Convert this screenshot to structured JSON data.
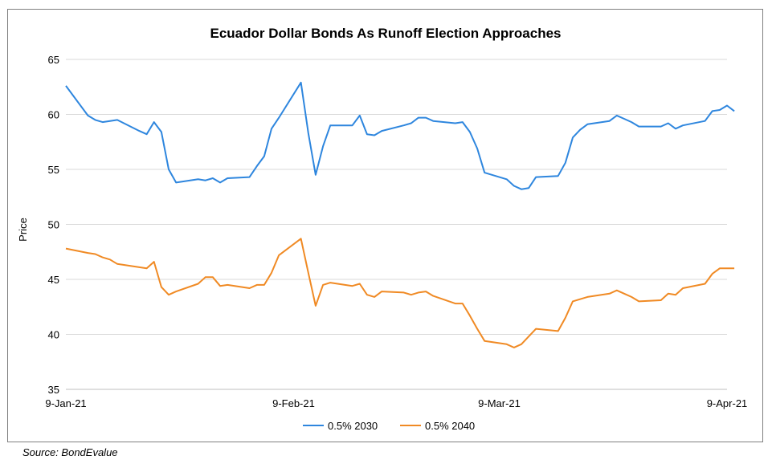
{
  "chart_data": {
    "type": "line",
    "title": "Ecuador Dollar Bonds As Runoff Election Approaches",
    "xlabel": "",
    "ylabel": "Price",
    "ylim": [
      35,
      65
    ],
    "yticks": [
      35,
      40,
      45,
      50,
      55,
      60,
      65
    ],
    "xlim": [
      "2021-01-09",
      "2021-04-09"
    ],
    "xticks": [
      "9-Jan-21",
      "9-Feb-21",
      "9-Mar-21",
      "9-Apr-21"
    ],
    "grid": true,
    "legend": "bottom-center",
    "series": [
      {
        "name": "0.5% 2030",
        "color": "#2E86DE",
        "points": [
          [
            "2021-01-09",
            62.6
          ],
          [
            "2021-01-12",
            59.9
          ],
          [
            "2021-01-13",
            59.5
          ],
          [
            "2021-01-14",
            59.3
          ],
          [
            "2021-01-15",
            59.4
          ],
          [
            "2021-01-16",
            59.5
          ],
          [
            "2021-01-19",
            58.5
          ],
          [
            "2021-01-20",
            58.2
          ],
          [
            "2021-01-21",
            59.3
          ],
          [
            "2021-01-22",
            58.4
          ],
          [
            "2021-01-23",
            55.0
          ],
          [
            "2021-01-24",
            53.8
          ],
          [
            "2021-01-27",
            54.1
          ],
          [
            "2021-01-28",
            54.0
          ],
          [
            "2021-01-29",
            54.2
          ],
          [
            "2021-01-30",
            53.8
          ],
          [
            "2021-01-31",
            54.2
          ],
          [
            "2021-02-03",
            54.3
          ],
          [
            "2021-02-04",
            55.3
          ],
          [
            "2021-02-05",
            56.2
          ],
          [
            "2021-02-06",
            58.7
          ],
          [
            "2021-02-07",
            59.7
          ],
          [
            "2021-02-10",
            62.9
          ],
          [
            "2021-02-11",
            58.3
          ],
          [
            "2021-02-12",
            54.5
          ],
          [
            "2021-02-13",
            57.1
          ],
          [
            "2021-02-14",
            59.0
          ],
          [
            "2021-02-17",
            59.0
          ],
          [
            "2021-02-18",
            59.9
          ],
          [
            "2021-02-19",
            58.2
          ],
          [
            "2021-02-20",
            58.1
          ],
          [
            "2021-02-21",
            58.5
          ],
          [
            "2021-02-24",
            59.0
          ],
          [
            "2021-02-25",
            59.2
          ],
          [
            "2021-02-26",
            59.7
          ],
          [
            "2021-02-27",
            59.7
          ],
          [
            "2021-02-28",
            59.4
          ],
          [
            "2021-03-03",
            59.2
          ],
          [
            "2021-03-04",
            59.3
          ],
          [
            "2021-03-05",
            58.4
          ],
          [
            "2021-03-06",
            56.9
          ],
          [
            "2021-03-07",
            54.7
          ],
          [
            "2021-03-10",
            54.1
          ],
          [
            "2021-03-11",
            53.5
          ],
          [
            "2021-03-12",
            53.2
          ],
          [
            "2021-03-13",
            53.3
          ],
          [
            "2021-03-14",
            54.3
          ],
          [
            "2021-03-17",
            54.4
          ],
          [
            "2021-03-18",
            55.6
          ],
          [
            "2021-03-19",
            57.9
          ],
          [
            "2021-03-20",
            58.6
          ],
          [
            "2021-03-21",
            59.1
          ],
          [
            "2021-03-24",
            59.4
          ],
          [
            "2021-03-25",
            59.9
          ],
          [
            "2021-03-26",
            59.6
          ],
          [
            "2021-03-27",
            59.3
          ],
          [
            "2021-03-28",
            58.9
          ],
          [
            "2021-03-31",
            58.9
          ],
          [
            "2021-04-01",
            59.2
          ],
          [
            "2021-04-02",
            58.7
          ],
          [
            "2021-04-03",
            59.0
          ],
          [
            "2021-04-06",
            59.4
          ],
          [
            "2021-04-07",
            60.3
          ],
          [
            "2021-04-08",
            60.4
          ],
          [
            "2021-04-09",
            60.8
          ],
          [
            "2021-04-10",
            60.3
          ]
        ]
      },
      {
        "name": "0.5% 2040",
        "color": "#F08A24",
        "points": [
          [
            "2021-01-09",
            47.8
          ],
          [
            "2021-01-12",
            47.4
          ],
          [
            "2021-01-13",
            47.3
          ],
          [
            "2021-01-14",
            47.0
          ],
          [
            "2021-01-15",
            46.8
          ],
          [
            "2021-01-16",
            46.4
          ],
          [
            "2021-01-19",
            46.1
          ],
          [
            "2021-01-20",
            46.0
          ],
          [
            "2021-01-21",
            46.6
          ],
          [
            "2021-01-22",
            44.3
          ],
          [
            "2021-01-23",
            43.6
          ],
          [
            "2021-01-24",
            43.9
          ],
          [
            "2021-01-27",
            44.6
          ],
          [
            "2021-01-28",
            45.2
          ],
          [
            "2021-01-29",
            45.2
          ],
          [
            "2021-01-30",
            44.4
          ],
          [
            "2021-01-31",
            44.5
          ],
          [
            "2021-02-03",
            44.2
          ],
          [
            "2021-02-04",
            44.5
          ],
          [
            "2021-02-05",
            44.5
          ],
          [
            "2021-02-06",
            45.6
          ],
          [
            "2021-02-07",
            47.2
          ],
          [
            "2021-02-10",
            48.7
          ],
          [
            "2021-02-11",
            45.6
          ],
          [
            "2021-02-12",
            42.6
          ],
          [
            "2021-02-13",
            44.5
          ],
          [
            "2021-02-14",
            44.7
          ],
          [
            "2021-02-17",
            44.4
          ],
          [
            "2021-02-18",
            44.6
          ],
          [
            "2021-02-19",
            43.6
          ],
          [
            "2021-02-20",
            43.4
          ],
          [
            "2021-02-21",
            43.9
          ],
          [
            "2021-02-24",
            43.8
          ],
          [
            "2021-02-25",
            43.6
          ],
          [
            "2021-02-26",
            43.8
          ],
          [
            "2021-02-27",
            43.9
          ],
          [
            "2021-02-28",
            43.5
          ],
          [
            "2021-03-03",
            42.8
          ],
          [
            "2021-03-04",
            42.8
          ],
          [
            "2021-03-05",
            41.7
          ],
          [
            "2021-03-06",
            40.5
          ],
          [
            "2021-03-07",
            39.4
          ],
          [
            "2021-03-10",
            39.1
          ],
          [
            "2021-03-11",
            38.8
          ],
          [
            "2021-03-12",
            39.1
          ],
          [
            "2021-03-13",
            39.8
          ],
          [
            "2021-03-14",
            40.5
          ],
          [
            "2021-03-17",
            40.3
          ],
          [
            "2021-03-18",
            41.5
          ],
          [
            "2021-03-19",
            43.0
          ],
          [
            "2021-03-20",
            43.2
          ],
          [
            "2021-03-21",
            43.4
          ],
          [
            "2021-03-24",
            43.7
          ],
          [
            "2021-03-25",
            44.0
          ],
          [
            "2021-03-26",
            43.7
          ],
          [
            "2021-03-27",
            43.4
          ],
          [
            "2021-03-28",
            43.0
          ],
          [
            "2021-03-31",
            43.1
          ],
          [
            "2021-04-01",
            43.7
          ],
          [
            "2021-04-02",
            43.6
          ],
          [
            "2021-04-03",
            44.2
          ],
          [
            "2021-04-06",
            44.6
          ],
          [
            "2021-04-07",
            45.5
          ],
          [
            "2021-04-08",
            46.0
          ],
          [
            "2021-04-10",
            46.0
          ]
        ]
      }
    ]
  },
  "source_text": "Source: BondEvalue"
}
